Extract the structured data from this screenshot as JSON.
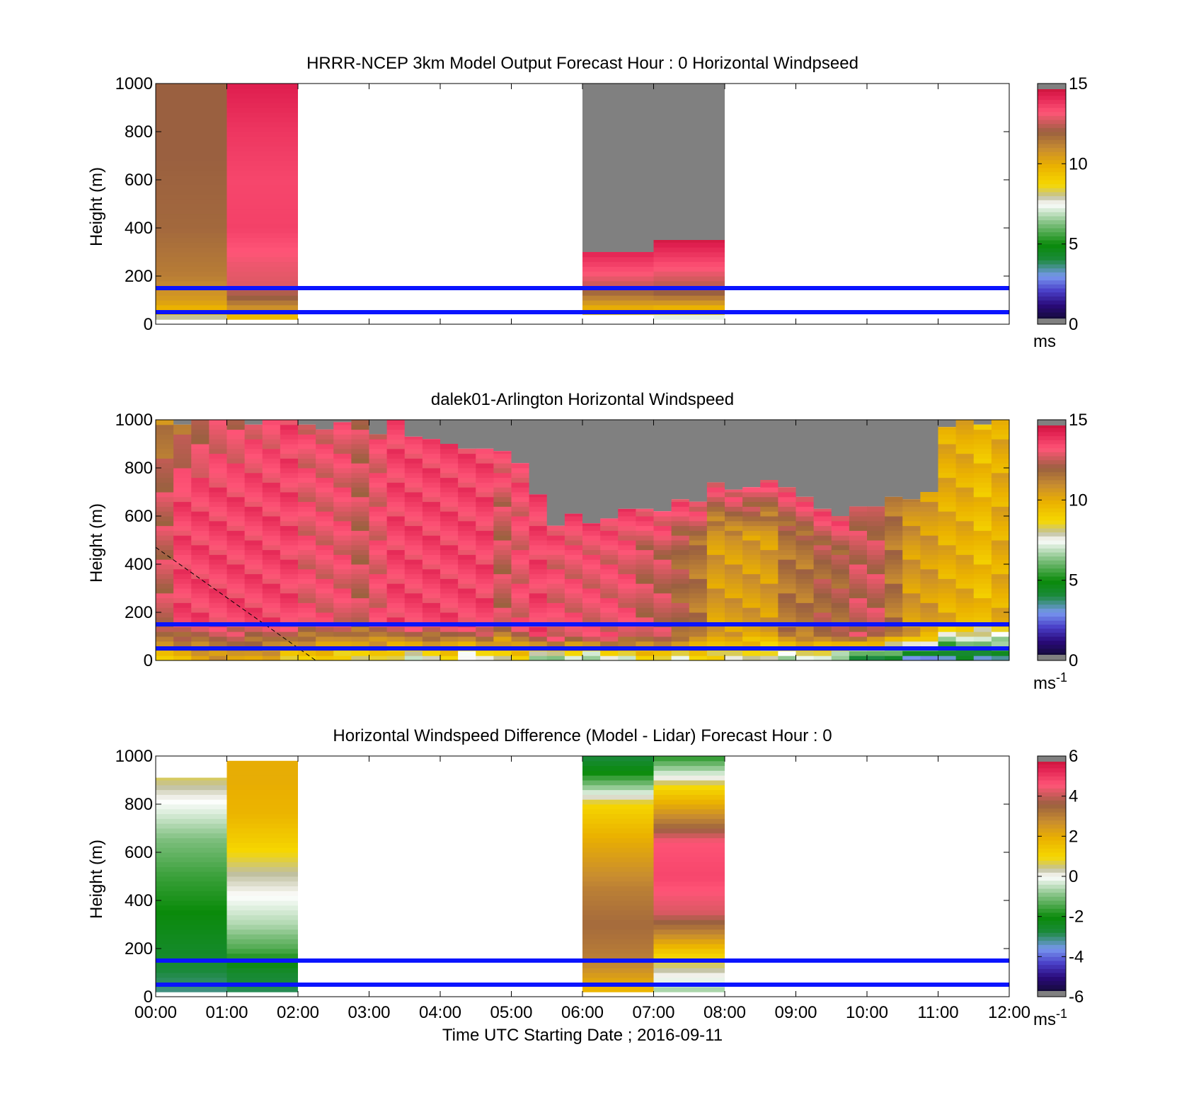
{
  "figure": {
    "xlabel": "Time UTC  Starting Date ; 2016-09-11",
    "x_ticks": [
      "00:00",
      "01:00",
      "02:00",
      "03:00",
      "04:00",
      "05:00",
      "06:00",
      "07:00",
      "08:00",
      "09:00",
      "10:00",
      "11:00",
      "12:00"
    ]
  },
  "chart_data": [
    {
      "type": "heatmap",
      "title": "HRRR-NCEP 3km Model Output   Forecast Hour : 0 Horizontal Windpseed",
      "ylabel": "Height (m)",
      "y_ticks": [
        "0",
        "200",
        "400",
        "600",
        "800",
        "1000"
      ],
      "ylim": [
        0,
        1000
      ],
      "xlim_hours": [
        0,
        12
      ],
      "colorbar": {
        "ticks": [
          "0",
          "5",
          "10",
          "15"
        ],
        "range": [
          0,
          15
        ],
        "unit": "ms",
        "unit_sup": "",
        "palette": "speed"
      },
      "reference_lines_m": [
        50,
        150
      ],
      "reference_line_color": "#0a14ff",
      "columns": [
        {
          "start_h": 0,
          "end_h": 1,
          "top_m": 1000,
          "profile": [
            [
              20,
              7
            ],
            [
              35,
              8.5
            ],
            [
              55,
              9.5
            ],
            [
              100,
              10.5
            ],
            [
              200,
              11.3
            ],
            [
              400,
              11.8
            ],
            [
              700,
              12.0
            ],
            [
              1000,
              12.0
            ]
          ]
        },
        {
          "start_h": 1,
          "end_h": 2,
          "top_m": 1000,
          "profile": [
            [
              25,
              9.5
            ],
            [
              60,
              10.5
            ],
            [
              110,
              12.0
            ],
            [
              170,
              12.8
            ],
            [
              250,
              13.0
            ],
            [
              400,
              13.6
            ],
            [
              600,
              13.5
            ],
            [
              800,
              13.8
            ],
            [
              1000,
              14.3
            ]
          ]
        },
        {
          "start_h": 6,
          "end_h": 7,
          "top_m": 300,
          "profile": [
            [
              20,
              6.5
            ],
            [
              40,
              8.5
            ],
            [
              70,
              10.0
            ],
            [
              120,
              11.5
            ],
            [
              160,
              12.5
            ],
            [
              230,
              13.4
            ],
            [
              300,
              14.2
            ]
          ]
        },
        {
          "start_h": 7,
          "end_h": 8,
          "top_m": 350,
          "profile": [
            [
              20,
              6.2
            ],
            [
              40,
              8.3
            ],
            [
              80,
              10.3
            ],
            [
              130,
              12.0
            ],
            [
              200,
              12.8
            ],
            [
              260,
              13.5
            ],
            [
              350,
              14.5
            ]
          ]
        }
      ],
      "missing_blocks": [
        {
          "start_h": 6,
          "end_h": 8,
          "from_m": 300,
          "to_m": 1000
        }
      ],
      "missing_color": "#808080"
    },
    {
      "type": "heatmap",
      "title": "dalek01-Arlington  Horizontal Windspeed",
      "ylabel": "Height (m)",
      "y_ticks": [
        "0",
        "200",
        "400",
        "600",
        "800",
        "1000"
      ],
      "ylim": [
        0,
        1000
      ],
      "xlim_hours": [
        0,
        12
      ],
      "colorbar": {
        "ticks": [
          "0",
          "5",
          "10",
          "15"
        ],
        "range": [
          0,
          15
        ],
        "unit": "ms",
        "unit_sup": "-1",
        "palette": "speed"
      },
      "reference_lines_m": [
        50,
        150
      ],
      "reference_line_color": "#0a14ff",
      "dashed_line": {
        "from": [
          0,
          470
        ],
        "to": [
          2.25,
          0
        ]
      },
      "observations": {
        "bin_hours": 0.25,
        "tops_m": [
          1000,
          980,
          1000,
          1000,
          1000,
          980,
          1000,
          1000,
          980,
          960,
          990,
          1000,
          940,
          1000,
          930,
          920,
          900,
          880,
          880,
          870,
          820,
          690,
          560,
          610,
          570,
          590,
          630,
          630,
          620,
          670,
          660,
          740,
          710,
          720,
          750,
          720,
          680,
          630,
          600,
          640,
          640,
          680,
          670,
          700,
          970,
          1000,
          980,
          1000
        ],
        "grey_tops_m": [
          1000,
          1000,
          1000,
          1000,
          1000,
          1000,
          1000,
          1000,
          1000,
          1000,
          1000,
          1000,
          1000,
          1000,
          1000,
          1000,
          1000,
          1000,
          1000,
          1000,
          1000,
          1000,
          1000,
          1000,
          1000,
          1000,
          1000,
          1000,
          1000,
          1000,
          1000,
          1000,
          1000,
          1000,
          1000,
          1000,
          1000,
          1000,
          1000,
          1000,
          1000,
          1000,
          1000,
          1000,
          1000,
          1000,
          1000,
          1000
        ],
        "surface_speed": [
          9.5,
          9.5,
          10.0,
          10.5,
          10.5,
          10.0,
          10.0,
          9.0,
          9.0,
          9.0,
          8.5,
          8.5,
          8.5,
          8.0,
          7.5,
          8.0,
          8.5,
          7.0,
          8.0,
          8.0,
          8.5,
          7.0,
          6.5,
          7.0,
          6.0,
          8.0,
          7.0,
          8.5,
          9.0,
          7.5,
          8.5,
          8.5,
          8.0,
          8.0,
          7.5,
          7.0,
          7.5,
          7.0,
          6.0,
          4.5,
          4.0,
          4.0,
          3.5,
          3.0,
          3.0,
          4.0,
          3.5,
          3.5
        ],
        "mid_speed": [
          12.5,
          13.5,
          13.5,
          13.5,
          13.5,
          13.5,
          13.5,
          13.5,
          13.0,
          13.0,
          13.0,
          12.5,
          13.0,
          13.5,
          13.5,
          13.5,
          13.5,
          13.5,
          13.5,
          12.5,
          13.0,
          13.5,
          13.0,
          13.0,
          13.0,
          13.0,
          13.0,
          12.5,
          12.5,
          12.0,
          11.5,
          10.5,
          10.5,
          10.5,
          10.5,
          11.5,
          11.5,
          12.0,
          12.0,
          12.5,
          12.5,
          11.5,
          10.5,
          10.5,
          10.0,
          10.0,
          9.5,
          10.0
        ],
        "top_speed": [
          11.0,
          11.5,
          12.0,
          12.5,
          12.5,
          13.0,
          13.0,
          13.5,
          13.0,
          13.0,
          13.0,
          12.5,
          13.0,
          13.5,
          13.5,
          13.5,
          13.5,
          13.5,
          13.5,
          13.5,
          13.5,
          13.5,
          13.5,
          13.5,
          13.5,
          13.5,
          13.5,
          13.5,
          13.5,
          13.5,
          13.5,
          13.5,
          13.5,
          13.5,
          13.5,
          13.5,
          13.5,
          13.5,
          13.5,
          12.5,
          12.0,
          11.5,
          11.0,
          10.5,
          10.0,
          10.0,
          9.5,
          10.0
        ]
      },
      "missing_color": "#808080"
    },
    {
      "type": "heatmap",
      "title": "Horizontal Windspeed Difference (Model - Lidar) Forecast Hour : 0",
      "ylabel": "Height (m)",
      "y_ticks": [
        "0",
        "200",
        "400",
        "600",
        "800",
        "1000"
      ],
      "ylim": [
        0,
        1000
      ],
      "xlim_hours": [
        0,
        12
      ],
      "colorbar": {
        "ticks": [
          "-6",
          "-4",
          "-2",
          "0",
          "2",
          "4",
          "6"
        ],
        "range": [
          -6,
          6
        ],
        "unit": "ms",
        "unit_sup": "-1",
        "palette": "diff"
      },
      "reference_lines_m": [
        50,
        150
      ],
      "reference_line_color": "#0a14ff",
      "columns": [
        {
          "start_h": 0,
          "end_h": 1,
          "top_m": 910,
          "profile": [
            [
              0,
              -3.2
            ],
            [
              150,
              -2.6
            ],
            [
              300,
              -2.2
            ],
            [
              500,
              -1.6
            ],
            [
              650,
              -1.0
            ],
            [
              760,
              -0.3
            ],
            [
              850,
              0.2
            ],
            [
              910,
              0.6
            ]
          ]
        },
        {
          "start_h": 1,
          "end_h": 2,
          "top_m": 980,
          "profile": [
            [
              0,
              -3.0
            ],
            [
              100,
              -2.6
            ],
            [
              200,
              -1.4
            ],
            [
              300,
              -0.6
            ],
            [
              420,
              0.0
            ],
            [
              520,
              0.4
            ],
            [
              640,
              1.2
            ],
            [
              760,
              1.8
            ],
            [
              900,
              2.0
            ],
            [
              980,
              2.0
            ]
          ]
        },
        {
          "start_h": 6,
          "end_h": 7,
          "top_m": 1000,
          "profile": [
            [
              0,
              1.5
            ],
            [
              150,
              3.0
            ],
            [
              300,
              3.4
            ],
            [
              450,
              3.0
            ],
            [
              650,
              2.0
            ],
            [
              800,
              1.0
            ],
            [
              860,
              -0.6
            ],
            [
              930,
              -2.0
            ],
            [
              1000,
              -2.8
            ]
          ]
        },
        {
          "start_h": 7,
          "end_h": 8,
          "top_m": 1000,
          "profile": [
            [
              0,
              -1.0
            ],
            [
              100,
              0.2
            ],
            [
              180,
              1.2
            ],
            [
              260,
              2.8
            ],
            [
              350,
              4.2
            ],
            [
              500,
              4.8
            ],
            [
              640,
              4.6
            ],
            [
              720,
              3.2
            ],
            [
              800,
              2.0
            ],
            [
              880,
              0.8
            ],
            [
              940,
              -0.6
            ],
            [
              1000,
              -1.8
            ]
          ]
        }
      ]
    }
  ]
}
